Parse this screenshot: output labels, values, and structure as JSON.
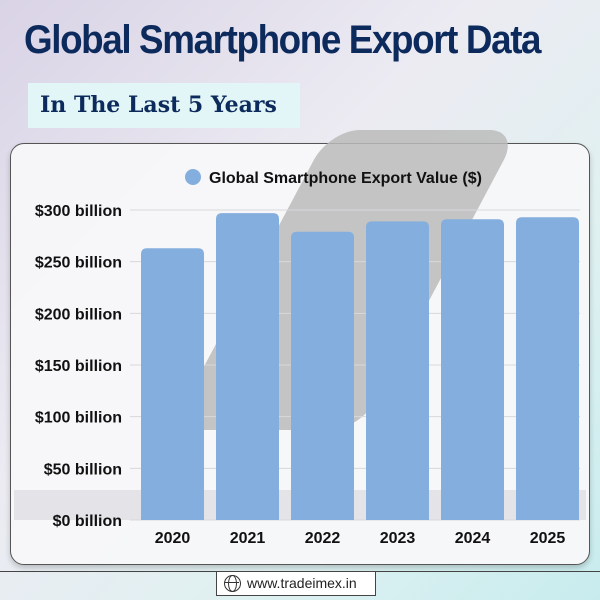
{
  "header": {
    "title": "Global Smartphone Export Data",
    "subtitle": "In The Last 5 Years"
  },
  "footer": {
    "url": "www.tradeimex.in"
  },
  "chart_data": {
    "type": "bar",
    "categories": [
      "2020",
      "2021",
      "2022",
      "2023",
      "2024",
      "2025"
    ],
    "series": [
      {
        "name": "Global Smartphone Export Value ($)",
        "values": [
          263,
          297,
          279,
          289,
          291,
          293
        ],
        "color": "#84aedd"
      }
    ],
    "ylim": [
      0,
      300
    ],
    "yticks": [
      0,
      50,
      100,
      150,
      200,
      250,
      300
    ],
    "ytick_labels": [
      "$0 billion",
      "$50 billion",
      "$100 billion",
      "$150 billion",
      "$200 billion",
      "$250 billion",
      "$300 billion"
    ],
    "legend": "top",
    "grid": true
  }
}
